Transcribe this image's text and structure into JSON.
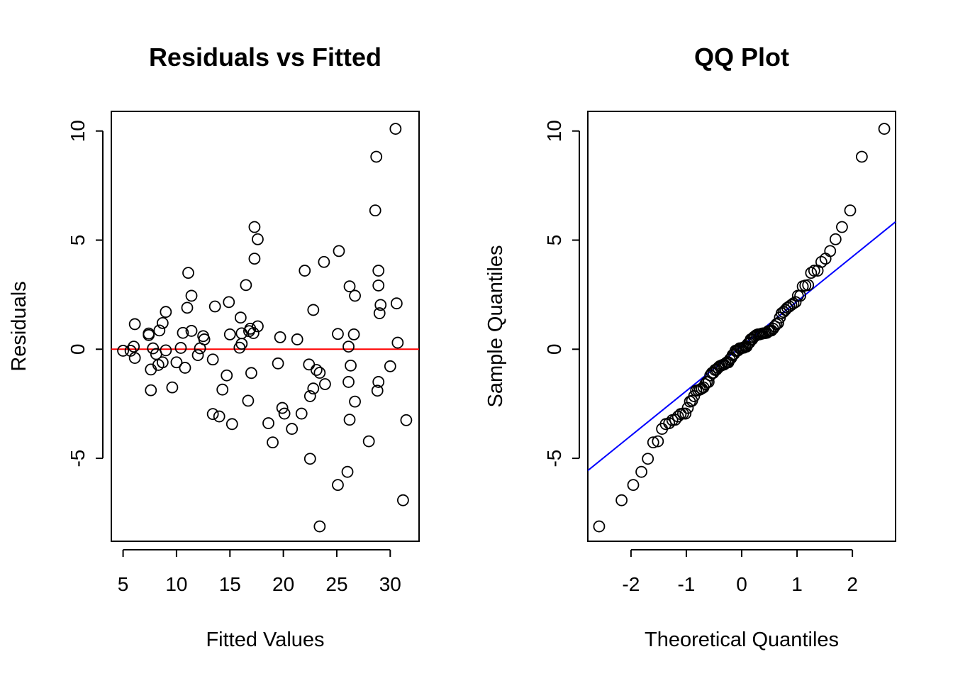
{
  "chart_data": [
    {
      "type": "scatter",
      "title": "Residuals vs Fitted",
      "xlabel": "Fitted Values",
      "ylabel": "Residuals",
      "xlim": [
        3.9,
        32.7
      ],
      "ylim": [
        -8.8,
        10.9
      ],
      "xticks": [
        5,
        10,
        15,
        20,
        25,
        30
      ],
      "yticks": [
        -5,
        0,
        5,
        10
      ],
      "reference_line": {
        "y": 0,
        "color": "#ff0000"
      },
      "points": [
        [
          5.0,
          -0.07
        ],
        [
          5.7,
          -0.07
        ],
        [
          6.0,
          0.12
        ],
        [
          6.1,
          1.15
        ],
        [
          6.1,
          -0.4
        ],
        [
          7.4,
          0.65
        ],
        [
          7.4,
          0.72
        ],
        [
          7.6,
          -0.93
        ],
        [
          7.6,
          -1.88
        ],
        [
          7.8,
          0.04
        ],
        [
          8.1,
          -0.22
        ],
        [
          8.3,
          -0.72
        ],
        [
          8.4,
          0.86
        ],
        [
          8.7,
          -0.6
        ],
        [
          8.7,
          1.2
        ],
        [
          9.0,
          -0.05
        ],
        [
          9.0,
          1.71
        ],
        [
          9.6,
          -1.75
        ],
        [
          10.0,
          -0.6
        ],
        [
          10.4,
          0.06
        ],
        [
          10.6,
          0.75
        ],
        [
          10.8,
          -0.85
        ],
        [
          11.0,
          1.9
        ],
        [
          11.1,
          3.5
        ],
        [
          11.4,
          2.45
        ],
        [
          11.4,
          0.84
        ],
        [
          12.0,
          -0.27
        ],
        [
          12.2,
          0.04
        ],
        [
          12.5,
          0.6
        ],
        [
          12.6,
          0.45
        ],
        [
          13.4,
          -0.47
        ],
        [
          13.4,
          -2.97
        ],
        [
          13.6,
          1.96
        ],
        [
          14.0,
          -3.08
        ],
        [
          14.3,
          -1.85
        ],
        [
          14.7,
          -1.2
        ],
        [
          14.9,
          2.16
        ],
        [
          15.0,
          0.68
        ],
        [
          15.2,
          -3.43
        ],
        [
          15.9,
          0.07
        ],
        [
          16.0,
          1.45
        ],
        [
          16.1,
          0.25
        ],
        [
          16.1,
          0.73
        ],
        [
          16.5,
          2.94
        ],
        [
          16.7,
          -2.36
        ],
        [
          16.8,
          0.83
        ],
        [
          16.9,
          0.94
        ],
        [
          17.0,
          -1.09
        ],
        [
          17.2,
          0.74
        ],
        [
          17.3,
          4.15
        ],
        [
          17.3,
          5.6
        ],
        [
          17.6,
          5.04
        ],
        [
          17.6,
          1.05
        ],
        [
          18.6,
          -3.39
        ],
        [
          19.0,
          -4.27
        ],
        [
          19.5,
          -0.65
        ],
        [
          19.7,
          0.55
        ],
        [
          19.9,
          -2.69
        ],
        [
          20.1,
          -2.95
        ],
        [
          20.8,
          -3.65
        ],
        [
          21.3,
          0.45
        ],
        [
          21.7,
          -2.95
        ],
        [
          22.0,
          3.6
        ],
        [
          22.4,
          -0.7
        ],
        [
          22.5,
          -2.15
        ],
        [
          22.5,
          -5.02
        ],
        [
          22.8,
          -1.8
        ],
        [
          22.8,
          1.8
        ],
        [
          23.1,
          -0.95
        ],
        [
          23.4,
          -1.08
        ],
        [
          23.4,
          -8.12
        ],
        [
          23.8,
          4.0
        ],
        [
          23.9,
          -1.6
        ],
        [
          25.1,
          0.7
        ],
        [
          25.1,
          -6.22
        ],
        [
          25.2,
          4.5
        ],
        [
          26.0,
          -5.62
        ],
        [
          26.1,
          0.12
        ],
        [
          26.1,
          -1.5
        ],
        [
          26.2,
          2.88
        ],
        [
          26.2,
          -3.23
        ],
        [
          26.3,
          -0.75
        ],
        [
          26.6,
          0.68
        ],
        [
          26.7,
          2.45
        ],
        [
          26.7,
          -2.4
        ],
        [
          28.0,
          -4.22
        ],
        [
          28.6,
          6.36
        ],
        [
          28.7,
          8.82
        ],
        [
          28.8,
          -1.9
        ],
        [
          28.9,
          3.6
        ],
        [
          28.9,
          2.92
        ],
        [
          28.9,
          -1.5
        ],
        [
          29.0,
          1.65
        ],
        [
          29.1,
          2.03
        ],
        [
          30.0,
          -0.78
        ],
        [
          30.5,
          10.1
        ],
        [
          30.6,
          2.1
        ],
        [
          30.7,
          0.3
        ],
        [
          31.2,
          -6.92
        ],
        [
          31.5,
          -3.25
        ]
      ]
    },
    {
      "type": "scatter",
      "title": "QQ Plot",
      "xlabel": "Theoretical Quantiles",
      "ylabel": "Sample Quantiles",
      "xlim": [
        -2.78,
        2.78
      ],
      "ylim": [
        -8.8,
        10.9
      ],
      "xticks": [
        -2,
        -1,
        0,
        1,
        2
      ],
      "yticks": [
        -5,
        0,
        5,
        10
      ],
      "reference_line": {
        "intercept": 0.14,
        "slope": 2.05,
        "color": "#0000ff"
      }
    }
  ]
}
